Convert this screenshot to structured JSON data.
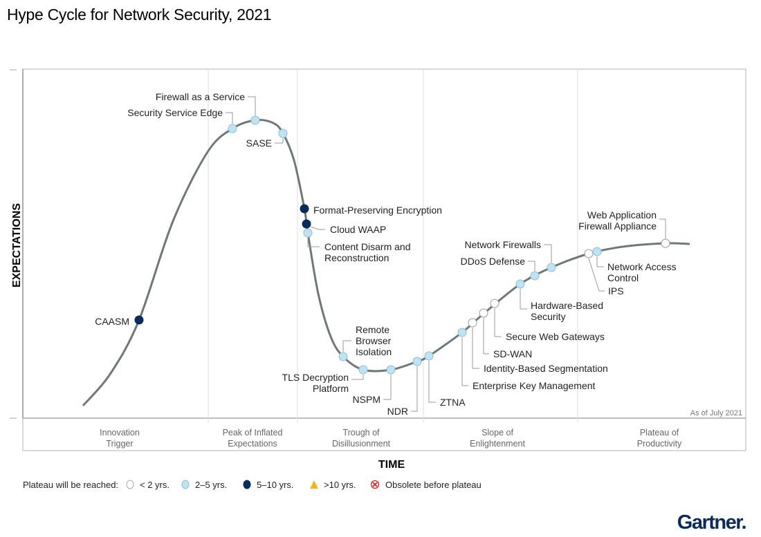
{
  "title": "Hype Cycle for Network Security, 2021",
  "y_axis_label": "EXPECTATIONS",
  "x_axis_label": "TIME",
  "as_of": "As of July 2021",
  "phases": [
    [
      "Innovation",
      "Trigger"
    ],
    [
      "Peak of Inflated",
      "Expectations"
    ],
    [
      "Trough of",
      "Disillusionment"
    ],
    [
      "Slope of",
      "Enlightenment"
    ],
    [
      "Plateau of",
      "Productivity"
    ]
  ],
  "legend": {
    "label": "Plateau will be reached:",
    "items": [
      {
        "text": "< 2 yrs.",
        "marker": "white-circle"
      },
      {
        "text": "2–5 yrs.",
        "marker": "light-blue-circle"
      },
      {
        "text": "5–10 yrs.",
        "marker": "dark-blue-circle"
      },
      {
        "text": ">10 yrs.",
        "marker": "yellow-triangle"
      },
      {
        "text": "Obsolete before plateau",
        "marker": "red-x-circle"
      }
    ]
  },
  "colors": {
    "white-circle": "#ffffff",
    "light-blue-circle": "#bfe3f2",
    "dark-blue-circle": "#0a2b5c",
    "yellow-triangle": "#f5b51a",
    "red-x-circle": "#e02020",
    "curve": "#6e7878",
    "brand": "#0a2b5c"
  },
  "items": [
    {
      "label": [
        "CAASM"
      ],
      "plateau": "5–10 yrs."
    },
    {
      "label": [
        "Security Service Edge"
      ],
      "plateau": "2–5 yrs."
    },
    {
      "label": [
        "Firewall as a Service"
      ],
      "plateau": "2–5 yrs."
    },
    {
      "label": [
        "SASE"
      ],
      "plateau": "2–5 yrs."
    },
    {
      "label": [
        "Format-Preserving Encryption"
      ],
      "plateau": "5–10 yrs."
    },
    {
      "label": [
        "Cloud WAAP"
      ],
      "plateau": "5–10 yrs."
    },
    {
      "label": [
        "Content Disarm and",
        "Reconstruction"
      ],
      "plateau": "2–5 yrs."
    },
    {
      "label": [
        "Remote",
        "Browser",
        "Isolation"
      ],
      "plateau": "2–5 yrs."
    },
    {
      "label": [
        "TLS Decryption",
        "Platform"
      ],
      "plateau": "2–5 yrs."
    },
    {
      "label": [
        "NSPM"
      ],
      "plateau": "2–5 yrs."
    },
    {
      "label": [
        "NDR"
      ],
      "plateau": "2–5 yrs."
    },
    {
      "label": [
        "ZTNA"
      ],
      "plateau": "2–5 yrs."
    },
    {
      "label": [
        "Enterprise Key Management"
      ],
      "plateau": "2–5 yrs."
    },
    {
      "label": [
        "Identity-Based Segmentation"
      ],
      "plateau": "< 2 yrs."
    },
    {
      "label": [
        "SD-WAN"
      ],
      "plateau": "< 2 yrs."
    },
    {
      "label": [
        "Secure Web Gateways"
      ],
      "plateau": "< 2 yrs."
    },
    {
      "label": [
        "Hardware-Based",
        "Security"
      ],
      "plateau": "2–5 yrs."
    },
    {
      "label": [
        "DDoS Defense"
      ],
      "plateau": "2–5 yrs."
    },
    {
      "label": [
        "Network Firewalls"
      ],
      "plateau": "2–5 yrs."
    },
    {
      "label": [
        "IPS"
      ],
      "plateau": "< 2 yrs."
    },
    {
      "label": [
        "Network Access",
        "Control"
      ],
      "plateau": "2–5 yrs."
    },
    {
      "label": [
        "Web Application",
        "Firewall Appliance"
      ],
      "plateau": "< 2 yrs."
    }
  ],
  "brand": "Gartner."
}
